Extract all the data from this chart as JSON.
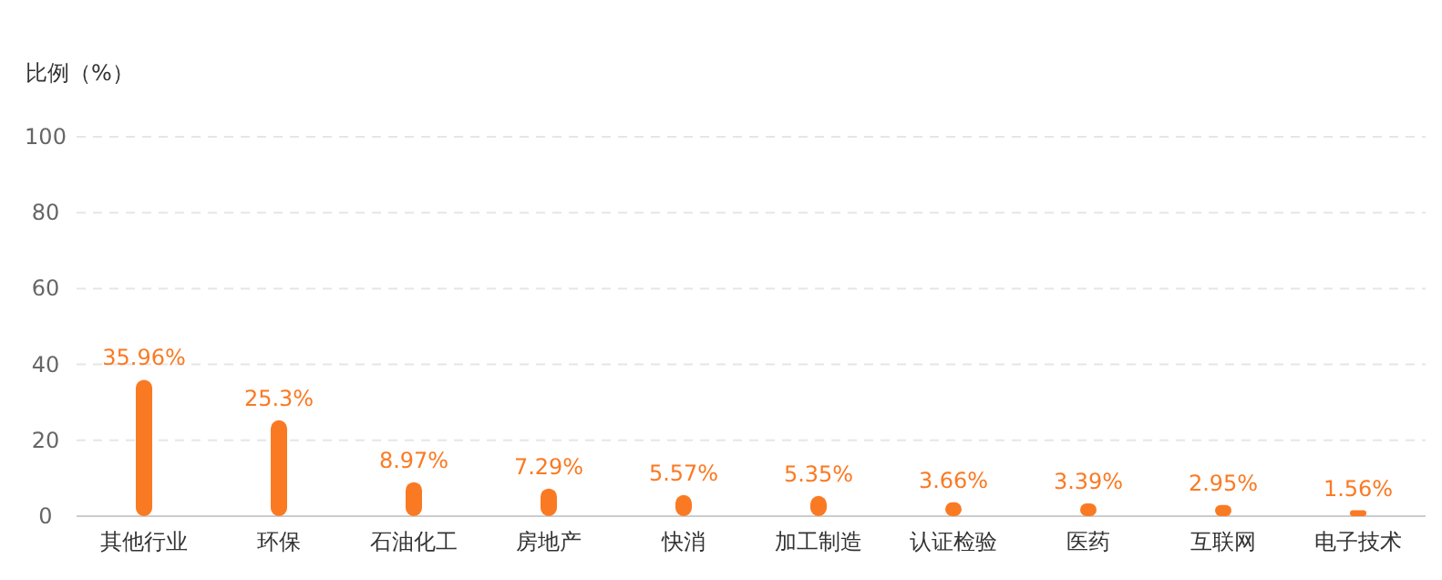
{
  "chart_data": {
    "type": "bar",
    "ylabel": "比例（%）",
    "categories": [
      "其他行业",
      "环保",
      "石油化工",
      "房地产",
      "快消",
      "加工制造",
      "认证检验",
      "医药",
      "互联网",
      "电子技术"
    ],
    "values": [
      35.96,
      25.3,
      8.97,
      7.29,
      5.57,
      5.35,
      3.66,
      3.39,
      2.95,
      1.56
    ],
    "value_labels": [
      "35.96%",
      "25.3%",
      "8.97%",
      "7.29%",
      "5.57%",
      "5.35%",
      "3.66%",
      "3.39%",
      "2.95%",
      "1.56%"
    ],
    "color": "#fa7a24",
    "ylim": [
      0,
      100
    ],
    "yticks": [
      0,
      20,
      40,
      60,
      80,
      100
    ],
    "grid": "y"
  }
}
